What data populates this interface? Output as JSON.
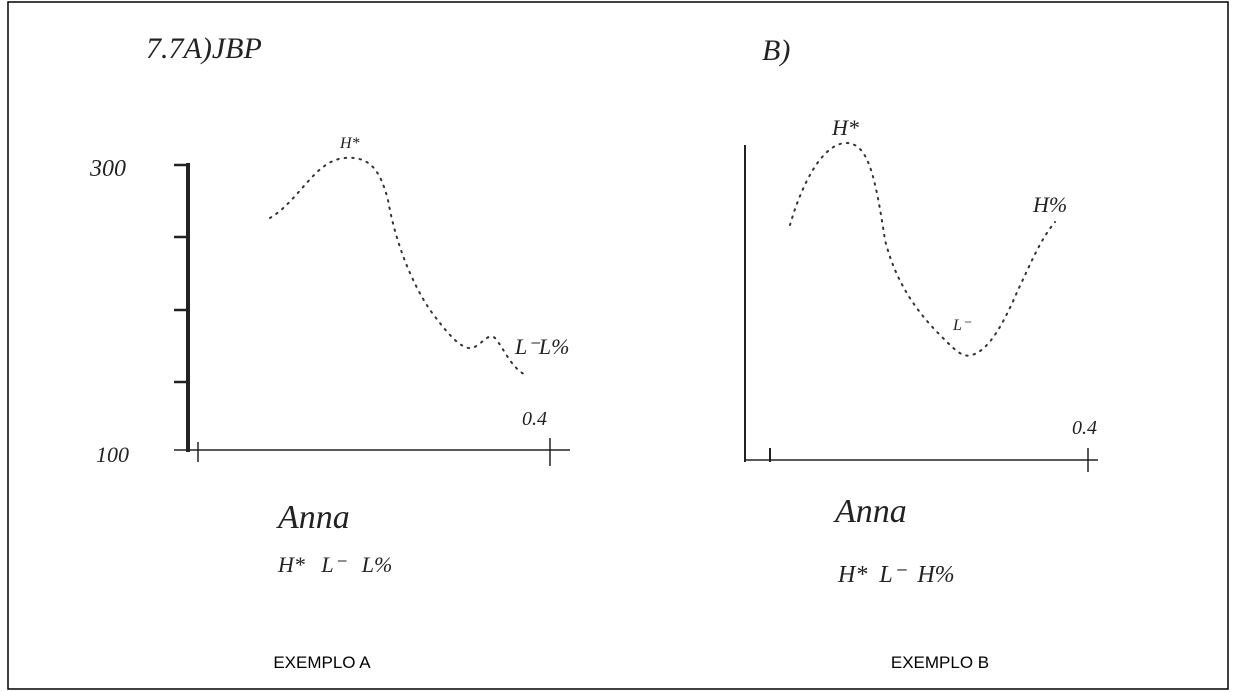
{
  "panel_a": {
    "title": "7.7A)JBP",
    "y_top": "300",
    "y_bottom": "100",
    "peak": "H*",
    "end": "L⁻L%",
    "x_end": "0.4",
    "word": "Anna",
    "tones": "H*   L⁻   L%",
    "caption": "EXEMPLO A"
  },
  "panel_b": {
    "title": "B)",
    "peak": "H*",
    "valley": "L⁻",
    "end": "H%",
    "x_end": "0.4",
    "word": "Anna",
    "tones": "H*  L⁻  H%",
    "caption": "EXEMPLO B"
  }
}
